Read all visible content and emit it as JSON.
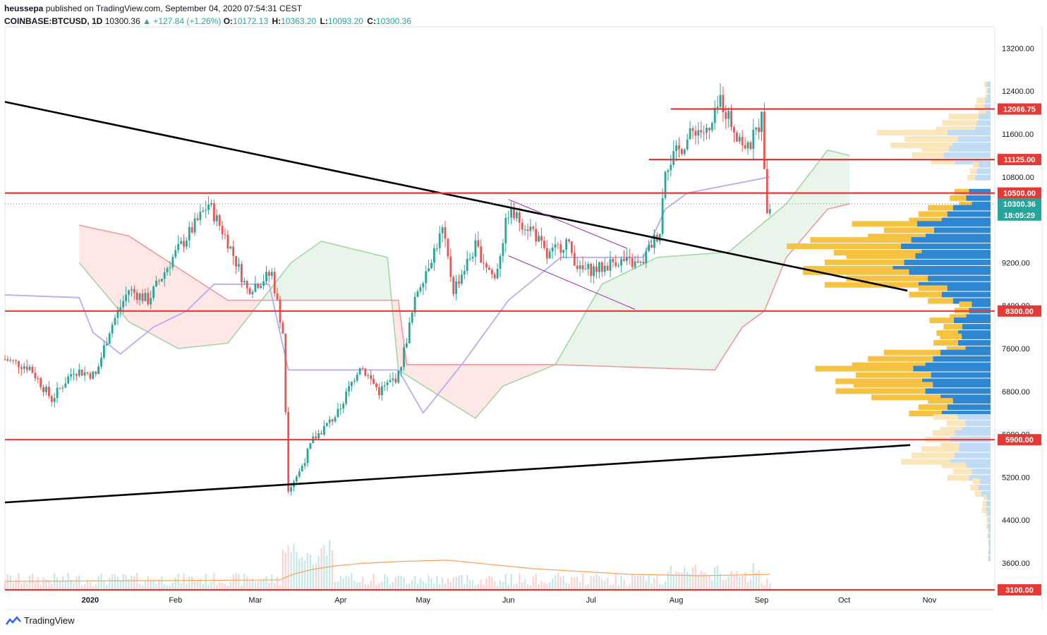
{
  "header": {
    "publisher": "heussepa",
    "published_text": "published on TradingView.com, September 04, 2020 07:54:31 CEST",
    "symbol": "COINBASE:BTCUSD, 1D",
    "last": "10300.36",
    "change": "▲ +127.84 (+1.26%)",
    "o_label": "O:",
    "o_value": "10172.13",
    "h_label": "H:",
    "h_value": "10363.20",
    "l_label": "L:",
    "l_value": "10093.20",
    "c_label": "C:",
    "c_value": "10300.36"
  },
  "footer": {
    "brand": "TradingView"
  },
  "colors": {
    "up": "#26a69a",
    "down": "#ef5350",
    "level": "#e53935",
    "trend": "#000000",
    "channel": "#9c27b0",
    "base_line": "#b3aef5",
    "span_a": "#a5d6a7",
    "span_b": "#ef9a9a",
    "vp_up": "#2f86d1",
    "vp_down": "#f5c242",
    "vp_up_light": "#bfdcf4",
    "vp_down_light": "#fbe6bb"
  },
  "chart_data": {
    "type": "candlestick",
    "y_scale": [
      3100,
      13600
    ],
    "y_ticks": [
      "13200.00",
      "12400.00",
      "11600.00",
      "10800.00",
      "9200.00",
      "8400.00",
      "7600.00",
      "6800.00",
      "6000.00",
      "5200.00",
      "4400.00",
      "3600.00"
    ],
    "x_ticks": [
      "2020",
      "Feb",
      "Mar",
      "Apr",
      "May",
      "Jun",
      "Jul",
      "Aug",
      "Sep",
      "Oct",
      "Nov"
    ],
    "levels": [
      {
        "label": "12066.75",
        "value": 12066.75
      },
      {
        "label": "11125.00",
        "value": 11125
      },
      {
        "label": "10500.00",
        "value": 10500
      },
      {
        "label": "8300.00",
        "value": 8300
      },
      {
        "label": "5900.00",
        "value": 5900
      },
      {
        "label": "3100.00",
        "value": 3100
      }
    ],
    "price_tag": {
      "label": "10300.36",
      "value": 10300.36
    },
    "countdown": "18:05:29",
    "trendlines": [
      {
        "from": {
          "date": "2019-12-01",
          "price": 12200
        },
        "to": {
          "date": "2020-10-24",
          "price": 8680
        }
      },
      {
        "from": {
          "date": "2019-12-01",
          "price": 4730
        },
        "to": {
          "date": "2020-10-25",
          "price": 5800
        }
      }
    ],
    "channel": [
      {
        "from": {
          "date": "2020-06-01",
          "price": 10380
        },
        "to": {
          "date": "2020-07-14",
          "price": 9470
        }
      },
      {
        "from": {
          "date": "2020-06-01",
          "price": 9330
        },
        "to": {
          "date": "2020-07-17",
          "price": 8330
        }
      }
    ],
    "price_path": [
      {
        "date": "2019-12-01",
        "price": 7400
      },
      {
        "date": "2019-12-10",
        "price": 7250
      },
      {
        "date": "2019-12-18",
        "price": 6650
      },
      {
        "date": "2019-12-26",
        "price": 7200
      },
      {
        "date": "2020-01-03",
        "price": 7100
      },
      {
        "date": "2020-01-08",
        "price": 7950
      },
      {
        "date": "2020-01-15",
        "price": 8700
      },
      {
        "date": "2020-01-22",
        "price": 8500
      },
      {
        "date": "2020-01-31",
        "price": 9300
      },
      {
        "date": "2020-02-08",
        "price": 9900
      },
      {
        "date": "2020-02-13",
        "price": 10300
      },
      {
        "date": "2020-02-20",
        "price": 9600
      },
      {
        "date": "2020-02-27",
        "price": 8700
      },
      {
        "date": "2020-03-07",
        "price": 9000
      },
      {
        "date": "2020-03-11",
        "price": 7900
      },
      {
        "date": "2020-03-13",
        "price": 5000
      },
      {
        "date": "2020-03-17",
        "price": 5300
      },
      {
        "date": "2020-03-22",
        "price": 5900
      },
      {
        "date": "2020-03-31",
        "price": 6400
      },
      {
        "date": "2020-04-08",
        "price": 7300
      },
      {
        "date": "2020-04-15",
        "price": 6800
      },
      {
        "date": "2020-04-22",
        "price": 7100
      },
      {
        "date": "2020-04-29",
        "price": 8700
      },
      {
        "date": "2020-05-08",
        "price": 9800
      },
      {
        "date": "2020-05-12",
        "price": 8700
      },
      {
        "date": "2020-05-20",
        "price": 9500
      },
      {
        "date": "2020-05-27",
        "price": 8900
      },
      {
        "date": "2020-06-01",
        "price": 10150
      },
      {
        "date": "2020-06-10",
        "price": 9800
      },
      {
        "date": "2020-06-15",
        "price": 9300
      },
      {
        "date": "2020-06-22",
        "price": 9600
      },
      {
        "date": "2020-06-27",
        "price": 9050
      },
      {
        "date": "2020-07-05",
        "price": 9100
      },
      {
        "date": "2020-07-10",
        "price": 9250
      },
      {
        "date": "2020-07-19",
        "price": 9150
      },
      {
        "date": "2020-07-23",
        "price": 9550
      },
      {
        "date": "2020-07-26",
        "price": 9800
      },
      {
        "date": "2020-07-28",
        "price": 11000
      },
      {
        "date": "2020-08-02",
        "price": 11300
      },
      {
        "date": "2020-08-08",
        "price": 11700
      },
      {
        "date": "2020-08-13",
        "price": 11600
      },
      {
        "date": "2020-08-17",
        "price": 12250
      },
      {
        "date": "2020-08-22",
        "price": 11700
      },
      {
        "date": "2020-08-27",
        "price": 11300
      },
      {
        "date": "2020-09-01",
        "price": 11900
      },
      {
        "date": "2020-09-03",
        "price": 10200
      },
      {
        "date": "2020-09-04",
        "price": 10300
      }
    ],
    "ichimoku_base": [
      {
        "date": "2019-12-01",
        "price": 8600
      },
      {
        "date": "2019-12-28",
        "price": 8550
      },
      {
        "date": "2020-01-02",
        "price": 7900
      },
      {
        "date": "2020-01-12",
        "price": 7500
      },
      {
        "date": "2020-01-24",
        "price": 8000
      },
      {
        "date": "2020-02-05",
        "price": 8300
      },
      {
        "date": "2020-02-15",
        "price": 8800
      },
      {
        "date": "2020-03-06",
        "price": 8800
      },
      {
        "date": "2020-03-13",
        "price": 7200
      },
      {
        "date": "2020-04-22",
        "price": 7200
      },
      {
        "date": "2020-05-01",
        "price": 6400
      },
      {
        "date": "2020-05-15",
        "price": 7300
      },
      {
        "date": "2020-06-01",
        "price": 8500
      },
      {
        "date": "2020-06-20",
        "price": 9300
      },
      {
        "date": "2020-07-20",
        "price": 9300
      },
      {
        "date": "2020-07-28",
        "price": 10200
      },
      {
        "date": "2020-08-05",
        "price": 10500
      },
      {
        "date": "2020-09-04",
        "price": 10800
      }
    ],
    "cloud_span_a": [
      {
        "date": "2019-12-28",
        "price": 9200
      },
      {
        "date": "2020-01-15",
        "price": 8100
      },
      {
        "date": "2020-02-02",
        "price": 7600
      },
      {
        "date": "2020-02-20",
        "price": 7700
      },
      {
        "date": "2020-03-14",
        "price": 9200
      },
      {
        "date": "2020-03-25",
        "price": 9600
      },
      {
        "date": "2020-04-18",
        "price": 9300
      },
      {
        "date": "2020-04-22",
        "price": 7200
      },
      {
        "date": "2020-05-20",
        "price": 6300
      },
      {
        "date": "2020-05-30",
        "price": 6900
      },
      {
        "date": "2020-06-18",
        "price": 7300
      },
      {
        "date": "2020-07-05",
        "price": 8800
      },
      {
        "date": "2020-07-25",
        "price": 9300
      },
      {
        "date": "2020-08-20",
        "price": 9400
      },
      {
        "date": "2020-09-10",
        "price": 10300
      },
      {
        "date": "2020-09-25",
        "price": 11300
      },
      {
        "date": "2020-10-03",
        "price": 11200
      }
    ],
    "cloud_span_b": [
      {
        "date": "2019-12-28",
        "price": 9900
      },
      {
        "date": "2020-01-15",
        "price": 9700
      },
      {
        "date": "2020-02-02",
        "price": 9100
      },
      {
        "date": "2020-02-20",
        "price": 8500
      },
      {
        "date": "2020-03-14",
        "price": 8500
      },
      {
        "date": "2020-04-22",
        "price": 8500
      },
      {
        "date": "2020-04-25",
        "price": 7300
      },
      {
        "date": "2020-06-18",
        "price": 7300
      },
      {
        "date": "2020-08-15",
        "price": 7200
      },
      {
        "date": "2020-08-25",
        "price": 8000
      },
      {
        "date": "2020-09-02",
        "price": 8300
      },
      {
        "date": "2020-09-10",
        "price": 9300
      },
      {
        "date": "2020-09-25",
        "price": 10200
      },
      {
        "date": "2020-10-03",
        "price": 10300
      }
    ],
    "volume_profile": [
      {
        "price": 12400,
        "up": 5,
        "down": 3,
        "light": true
      },
      {
        "price": 12100,
        "up": 8,
        "down": 12,
        "light": true
      },
      {
        "price": 11800,
        "up": 20,
        "down": 50,
        "light": true
      },
      {
        "price": 11500,
        "up": 55,
        "down": 90,
        "light": true
      },
      {
        "price": 11200,
        "up": 60,
        "down": 40,
        "light": true
      },
      {
        "price": 10900,
        "up": 20,
        "down": 10,
        "light": true
      },
      {
        "price": 10400,
        "up": 30,
        "down": 20,
        "light": false
      },
      {
        "price": 10100,
        "up": 60,
        "down": 40,
        "light": false
      },
      {
        "price": 9800,
        "up": 90,
        "down": 80,
        "light": false
      },
      {
        "price": 9500,
        "up": 110,
        "down": 140,
        "light": false
      },
      {
        "price": 9200,
        "up": 120,
        "down": 110,
        "light": false
      },
      {
        "price": 8900,
        "up": 100,
        "down": 130,
        "light": false
      },
      {
        "price": 8600,
        "up": 60,
        "down": 40,
        "light": false
      },
      {
        "price": 8300,
        "up": 30,
        "down": 20,
        "light": false
      },
      {
        "price": 8000,
        "up": 45,
        "down": 30,
        "light": false
      },
      {
        "price": 7700,
        "up": 40,
        "down": 30,
        "light": false
      },
      {
        "price": 7400,
        "up": 80,
        "down": 90,
        "light": false
      },
      {
        "price": 7100,
        "up": 95,
        "down": 120,
        "light": false
      },
      {
        "price": 6800,
        "up": 80,
        "down": 110,
        "light": false
      },
      {
        "price": 6500,
        "up": 60,
        "down": 40,
        "light": false
      },
      {
        "price": 6200,
        "up": 40,
        "down": 30,
        "light": true
      },
      {
        "price": 5900,
        "up": 50,
        "down": 30,
        "light": true
      },
      {
        "price": 5600,
        "up": 50,
        "down": 60,
        "light": true
      },
      {
        "price": 5300,
        "up": 30,
        "down": 30,
        "light": true
      },
      {
        "price": 5000,
        "up": 15,
        "down": 10,
        "light": true
      },
      {
        "price": 4700,
        "up": 6,
        "down": 5,
        "light": true
      },
      {
        "price": 4400,
        "up": 4,
        "down": 2,
        "light": true
      },
      {
        "price": 4100,
        "up": 3,
        "down": 1,
        "light": true
      },
      {
        "price": 3800,
        "up": 3,
        "down": 0,
        "light": true
      }
    ]
  }
}
